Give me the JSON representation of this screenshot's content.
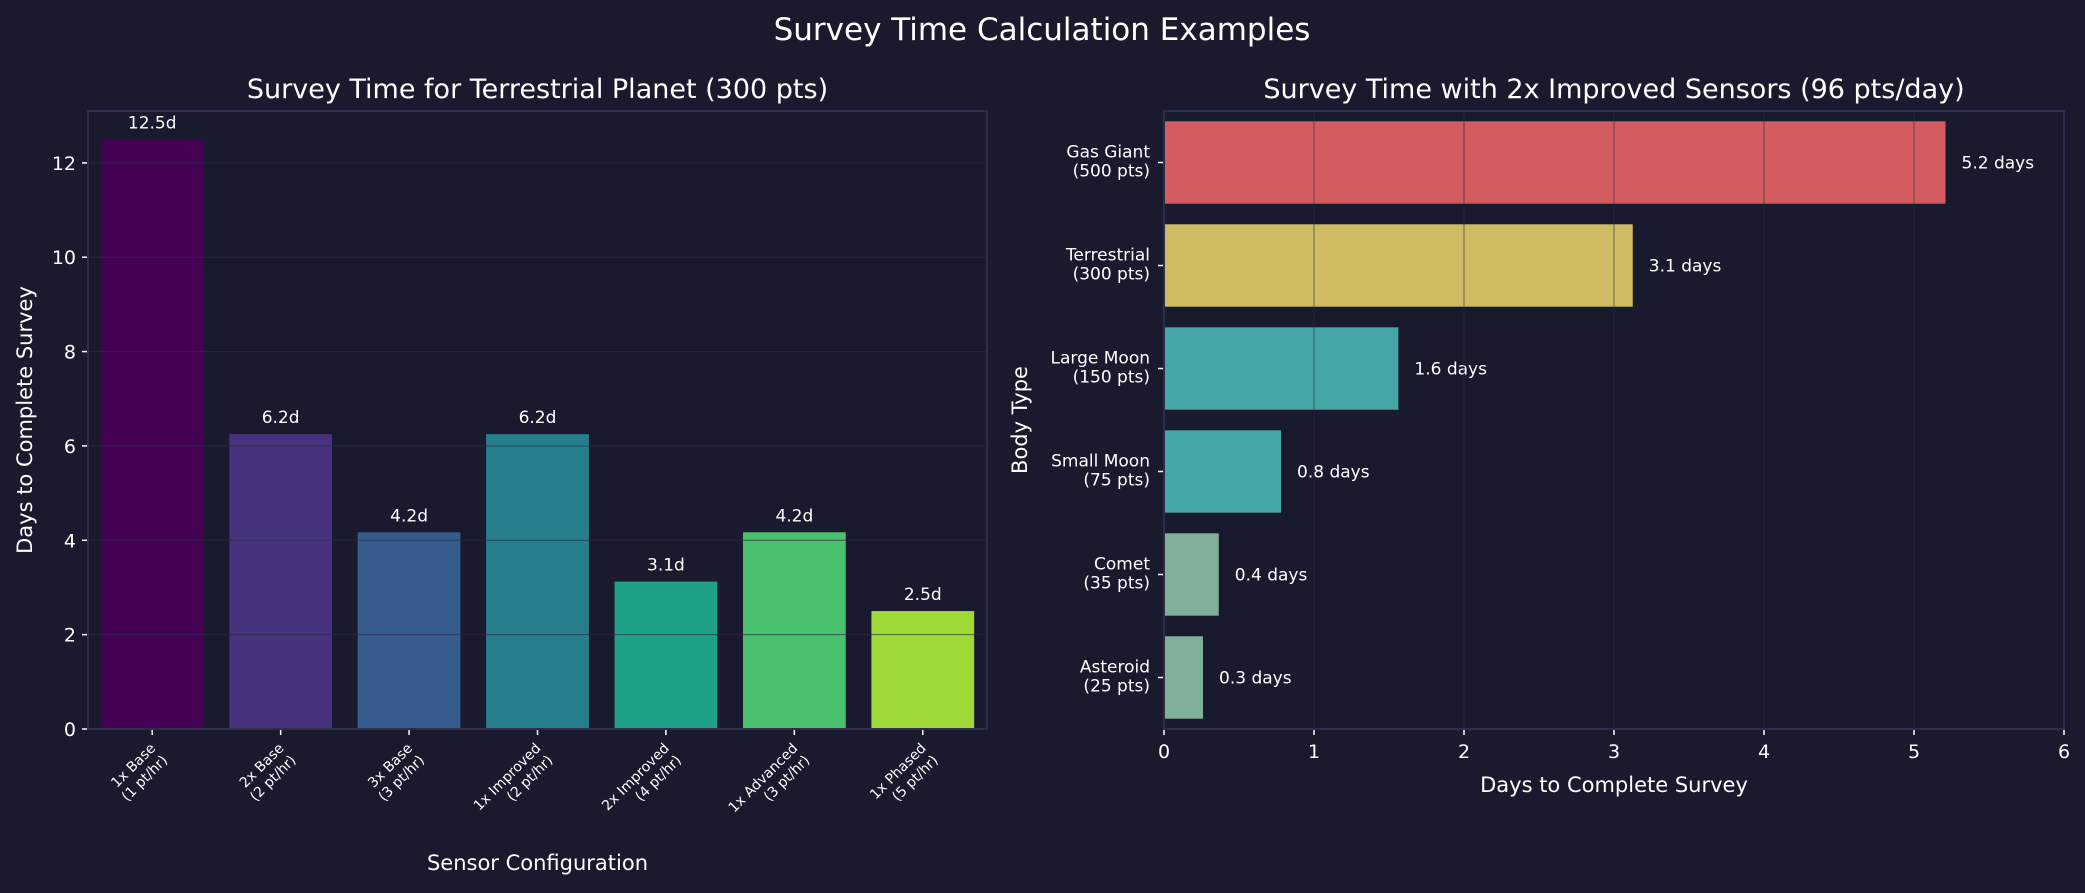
{
  "suptitle": "Survey Time Calculation Examples",
  "colors": {
    "background": "#1a1a2e",
    "spine": "#2c2c4c",
    "grid": "#2a2a44",
    "text": "#ffffff"
  },
  "chart_data": [
    {
      "type": "bar",
      "title": "Survey Time for Terrestrial Planet (300 pts)",
      "xlabel": "Sensor Configuration",
      "ylabel": "Days to Complete Survey",
      "categories": [
        "1x Base\n(1 pt/hr)",
        "2x Base\n(2 pt/hr)",
        "3x Base\n(3 pt/hr)",
        "1x Improved\n(2 pt/hr)",
        "2x Improved\n(4 pt/hr)",
        "1x Advanced\n(3 pt/hr)",
        "1x Phased\n(5 pt/hr)"
      ],
      "values": [
        12.5,
        6.25,
        4.17,
        6.25,
        3.125,
        4.17,
        2.5
      ],
      "data_labels": [
        "12.5d",
        "6.2d",
        "4.2d",
        "6.2d",
        "3.1d",
        "4.2d",
        "2.5d"
      ],
      "colors": [
        "#440154",
        "#46327e",
        "#365c8d",
        "#277f8e",
        "#1fa187",
        "#4ac16d",
        "#a0da39"
      ],
      "ylim": [
        0,
        13.1
      ],
      "yticks": [
        0,
        2,
        4,
        6,
        8,
        10,
        12
      ],
      "grid": "y"
    },
    {
      "type": "bar",
      "orientation": "horizontal",
      "title": "Survey Time with 2x Improved Sensors (96 pts/day)",
      "xlabel": "Days to Complete Survey",
      "ylabel": "Body Type",
      "categories": [
        "Gas Giant\n(500 pts)",
        "Terrestrial\n(300 pts)",
        "Large Moon\n(150 pts)",
        "Small Moon\n(75 pts)",
        "Comet\n(35 pts)",
        "Asteroid\n(25 pts)"
      ],
      "values": [
        5.21,
        3.125,
        1.5625,
        0.78,
        0.365,
        0.26
      ],
      "data_labels": [
        "5.2 days",
        "3.1 days",
        "1.6 days",
        "0.8 days",
        "0.4 days",
        "0.3 days"
      ],
      "colors": [
        "#d35c60",
        "#cfbb62",
        "#45a6a6",
        "#45a6a6",
        "#7fb09a",
        "#7fb09a"
      ],
      "xlim": [
        0,
        6
      ],
      "xticks": [
        0,
        1,
        2,
        3,
        4,
        5,
        6
      ],
      "grid": "x"
    }
  ]
}
